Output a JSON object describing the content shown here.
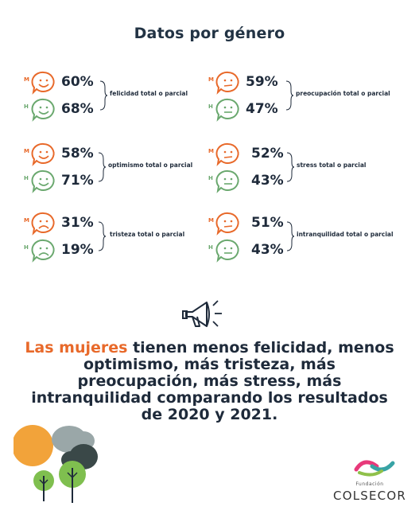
{
  "title": "Datos por género",
  "gender_labels": {
    "women": "M",
    "men": "H"
  },
  "metrics": [
    {
      "label": "felicidad total o parcial",
      "women": "60%",
      "men": "68%"
    },
    {
      "label": "preocupación total o parcial",
      "women": "59%",
      "men": "47%"
    },
    {
      "label": "optimismo total o parcial",
      "women": "58%",
      "men": "71%"
    },
    {
      "label": "stress total o parcial",
      "women": "52%",
      "men": "43%"
    },
    {
      "label": "tristeza total o parcial",
      "women": "31%",
      "men": "19%"
    },
    {
      "label": "intranquilidad total o parcial",
      "women": "51%",
      "men": "43%"
    }
  ],
  "headline": {
    "accent": "Las mujeres",
    "rest": " tienen menos felicidad, menos optimismo, más tristeza, más preocupación, más stress, más intranquilidad comparando los resultados de 2020 y 2021."
  },
  "logo": {
    "small": "Fundación",
    "name": "COLSECOR"
  },
  "colors": {
    "women": "#e8692a",
    "men": "#6aa86e",
    "text": "#1e2a3a",
    "tree_sun": "#f2a33a"
  },
  "icons": {
    "happy": "smiley-icon",
    "neutral": "neutral-face-icon",
    "sad": "sad-face-icon",
    "megaphone": "megaphone-icon"
  }
}
